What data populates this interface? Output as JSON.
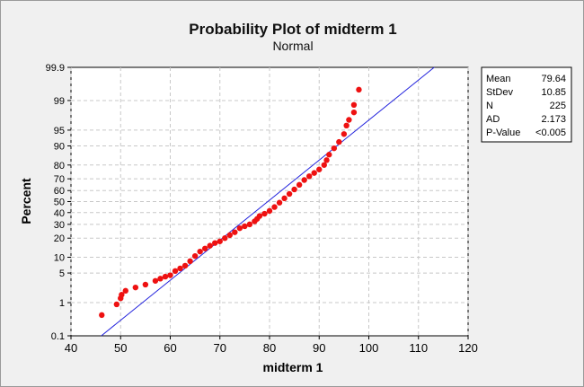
{
  "chart_data": {
    "type": "scatter",
    "title": "Probability Plot of midterm 1",
    "subtitle": "Normal",
    "xlabel": "midterm 1",
    "ylabel": "Percent",
    "xlim": [
      40,
      120
    ],
    "x_ticks": [
      40,
      50,
      60,
      70,
      80,
      90,
      100,
      110,
      120
    ],
    "y_ticks": [
      0.1,
      1,
      5,
      10,
      20,
      30,
      40,
      50,
      60,
      70,
      80,
      90,
      95,
      99,
      99.9
    ],
    "y_tick_labels": [
      "0.1",
      "1",
      "5",
      "10",
      "20",
      "30",
      "40",
      "50",
      "60",
      "70",
      "80",
      "90",
      "95",
      "99",
      "99.9"
    ],
    "y_scale": "normal-probability",
    "grid": true,
    "fit_line": {
      "mean": 79.64,
      "stdev": 10.85
    },
    "stats": [
      {
        "label": "Mean",
        "value": "79.64"
      },
      {
        "label": "StDev",
        "value": "10.85"
      },
      {
        "label": "N",
        "value": "225"
      },
      {
        "label": "AD",
        "value": "2.173"
      },
      {
        "label": "P-Value",
        "value": "<0.005"
      }
    ],
    "points": [
      [
        46.2,
        0.45
      ],
      [
        49.2,
        0.9
      ],
      [
        50.0,
        1.3
      ],
      [
        50.2,
        1.6
      ],
      [
        51.0,
        2.0
      ],
      [
        53.0,
        2.4
      ],
      [
        55.0,
        2.8
      ],
      [
        57.0,
        3.4
      ],
      [
        58.0,
        3.8
      ],
      [
        59.0,
        4.2
      ],
      [
        60.0,
        4.5
      ],
      [
        61.0,
        5.5
      ],
      [
        62.0,
        6.2
      ],
      [
        63.0,
        7.0
      ],
      [
        64.0,
        8.5
      ],
      [
        65.0,
        10.5
      ],
      [
        66.0,
        12.5
      ],
      [
        67.0,
        14.0
      ],
      [
        68.0,
        15.5
      ],
      [
        69.0,
        17.0
      ],
      [
        70.0,
        18.0
      ],
      [
        71.0,
        20.0
      ],
      [
        72.0,
        22.0
      ],
      [
        73.0,
        24.0
      ],
      [
        74.0,
        27.0
      ],
      [
        75.0,
        28.5
      ],
      [
        76.0,
        30.0
      ],
      [
        77.0,
        32.5
      ],
      [
        77.5,
        34.5
      ],
      [
        78.0,
        37.0
      ],
      [
        79.0,
        39.0
      ],
      [
        80.0,
        41.5
      ],
      [
        81.0,
        45.0
      ],
      [
        82.0,
        49.0
      ],
      [
        83.0,
        53.0
      ],
      [
        84.0,
        57.0
      ],
      [
        85.0,
        61.0
      ],
      [
        86.0,
        65.0
      ],
      [
        87.0,
        69.0
      ],
      [
        88.0,
        72.0
      ],
      [
        89.0,
        74.5
      ],
      [
        90.0,
        77.0
      ],
      [
        91.0,
        80.0
      ],
      [
        91.5,
        83.0
      ],
      [
        92.0,
        86.0
      ],
      [
        93.0,
        89.0
      ],
      [
        94.0,
        91.5
      ],
      [
        95.0,
        94.0
      ],
      [
        95.5,
        96.0
      ],
      [
        96.0,
        97.0
      ],
      [
        97.0,
        98.0
      ],
      [
        97.0,
        98.7
      ],
      [
        98.0,
        99.5
      ]
    ]
  }
}
